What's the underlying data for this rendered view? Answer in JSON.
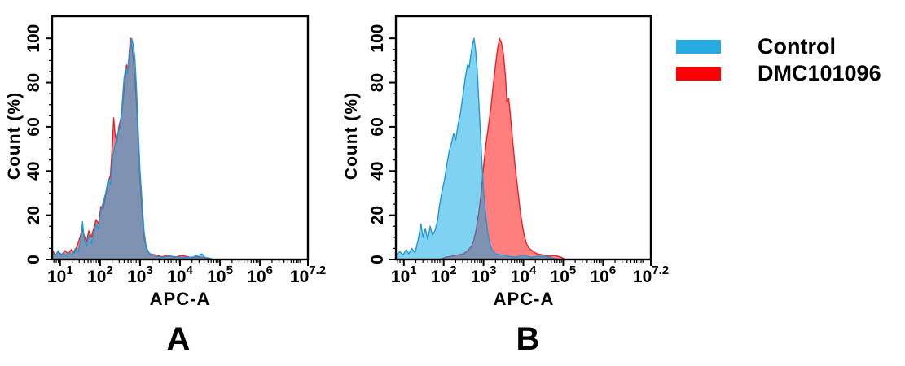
{
  "figure": {
    "background": "#FFFFFF",
    "text_color": "#000000"
  },
  "legend": {
    "position": "top-right",
    "items": [
      {
        "label": "Control",
        "color": "#29ABE2"
      },
      {
        "label": "DMC101096",
        "color": "#FF0000"
      }
    ]
  },
  "chart_data": [
    {
      "type": "area",
      "panel_label": "A",
      "xlabel": "APC-A",
      "ylabel": "Count (%)",
      "x_scale": "log10",
      "x_log_range": [
        0.8,
        7.2
      ],
      "x_ticks": [
        {
          "log": 1,
          "base": "10",
          "exp": "1"
        },
        {
          "log": 2,
          "base": "10",
          "exp": "2"
        },
        {
          "log": 3,
          "base": "10",
          "exp": "3"
        },
        {
          "log": 4,
          "base": "10",
          "exp": "4"
        },
        {
          "log": 5,
          "base": "10",
          "exp": "5"
        },
        {
          "log": 6,
          "base": "10",
          "exp": "6"
        },
        {
          "log": 7.2,
          "base": "10",
          "exp": "7.2"
        }
      ],
      "ylim": [
        0,
        100
      ],
      "y_display_max": 110,
      "y_ticks": [
        0,
        20,
        40,
        60,
        80,
        100
      ],
      "grid": false,
      "series": [
        {
          "name": "Control",
          "fill": "#00A5E5",
          "fill_opacity": 0.5,
          "stroke": "#2098D6",
          "points_log10x_pct": [
            [
              0.8,
              3
            ],
            [
              0.88,
              1.5
            ],
            [
              0.95,
              4
            ],
            [
              1.0,
              2
            ],
            [
              1.08,
              3
            ],
            [
              1.15,
              1.5
            ],
            [
              1.22,
              3
            ],
            [
              1.3,
              2
            ],
            [
              1.38,
              5
            ],
            [
              1.45,
              3
            ],
            [
              1.52,
              9
            ],
            [
              1.56,
              17
            ],
            [
              1.6,
              9
            ],
            [
              1.66,
              6
            ],
            [
              1.72,
              11
            ],
            [
              1.78,
              7
            ],
            [
              1.84,
              12
            ],
            [
              1.9,
              16
            ],
            [
              1.96,
              14
            ],
            [
              2.02,
              22
            ],
            [
              2.08,
              26
            ],
            [
              2.14,
              30
            ],
            [
              2.2,
              36
            ],
            [
              2.26,
              34
            ],
            [
              2.32,
              47
            ],
            [
              2.38,
              52
            ],
            [
              2.44,
              57
            ],
            [
              2.5,
              60
            ],
            [
              2.55,
              70
            ],
            [
              2.6,
              82
            ],
            [
              2.64,
              86
            ],
            [
              2.68,
              84
            ],
            [
              2.72,
              91
            ],
            [
              2.76,
              96
            ],
            [
              2.79,
              100
            ],
            [
              2.83,
              97
            ],
            [
              2.87,
              91
            ],
            [
              2.91,
              78
            ],
            [
              2.95,
              60
            ],
            [
              3.0,
              40
            ],
            [
              3.05,
              26
            ],
            [
              3.1,
              13
            ],
            [
              3.15,
              6
            ],
            [
              3.22,
              3
            ],
            [
              3.35,
              1.5
            ],
            [
              3.55,
              1
            ],
            [
              3.75,
              1.5
            ],
            [
              4.0,
              1
            ],
            [
              4.3,
              1
            ],
            [
              4.55,
              2.5
            ],
            [
              4.62,
              1
            ],
            [
              4.75,
              0.5
            ],
            [
              4.85,
              0
            ]
          ]
        },
        {
          "name": "DMC101096",
          "fill": "#FF0000",
          "fill_opacity": 0.5,
          "stroke": "#ED2024",
          "points_log10x_pct": [
            [
              0.8,
              4.5
            ],
            [
              0.88,
              2
            ],
            [
              0.96,
              3.5
            ],
            [
              1.04,
              2
            ],
            [
              1.12,
              4
            ],
            [
              1.2,
              2.5
            ],
            [
              1.28,
              4.5
            ],
            [
              1.36,
              3
            ],
            [
              1.44,
              7
            ],
            [
              1.5,
              10
            ],
            [
              1.55,
              14
            ],
            [
              1.6,
              11
            ],
            [
              1.66,
              8
            ],
            [
              1.72,
              13
            ],
            [
              1.78,
              10
            ],
            [
              1.84,
              14
            ],
            [
              1.9,
              18
            ],
            [
              1.96,
              16
            ],
            [
              2.02,
              24
            ],
            [
              2.08,
              23
            ],
            [
              2.14,
              29
            ],
            [
              2.2,
              35
            ],
            [
              2.26,
              38
            ],
            [
              2.3,
              50
            ],
            [
              2.34,
              64
            ],
            [
              2.38,
              56
            ],
            [
              2.42,
              53
            ],
            [
              2.47,
              60
            ],
            [
              2.52,
              64
            ],
            [
              2.57,
              71
            ],
            [
              2.62,
              80
            ],
            [
              2.66,
              88
            ],
            [
              2.7,
              86
            ],
            [
              2.73,
              94
            ],
            [
              2.76,
              100
            ],
            [
              2.8,
              96
            ],
            [
              2.84,
              89
            ],
            [
              2.88,
              80
            ],
            [
              2.92,
              68
            ],
            [
              2.96,
              52
            ],
            [
              3.0,
              36
            ],
            [
              3.05,
              21
            ],
            [
              3.1,
              10
            ],
            [
              3.16,
              5
            ],
            [
              3.24,
              2.5
            ],
            [
              3.4,
              2
            ],
            [
              3.55,
              1.2
            ],
            [
              3.7,
              2
            ],
            [
              3.85,
              1
            ],
            [
              4.05,
              1.8
            ],
            [
              4.25,
              1
            ],
            [
              4.45,
              1.2
            ],
            [
              4.65,
              0.8
            ],
            [
              4.8,
              0
            ]
          ]
        }
      ]
    },
    {
      "type": "area",
      "panel_label": "B",
      "xlabel": "APC-A",
      "ylabel": "Count (%)",
      "x_scale": "log10",
      "x_log_range": [
        0.8,
        7.2
      ],
      "x_ticks": [
        {
          "log": 1,
          "base": "10",
          "exp": "1"
        },
        {
          "log": 2,
          "base": "10",
          "exp": "2"
        },
        {
          "log": 3,
          "base": "10",
          "exp": "3"
        },
        {
          "log": 4,
          "base": "10",
          "exp": "4"
        },
        {
          "log": 5,
          "base": "10",
          "exp": "5"
        },
        {
          "log": 6,
          "base": "10",
          "exp": "6"
        },
        {
          "log": 7.2,
          "base": "10",
          "exp": "7.2"
        }
      ],
      "ylim": [
        0,
        100
      ],
      "y_display_max": 110,
      "y_ticks": [
        0,
        20,
        40,
        60,
        80,
        100
      ],
      "grid": false,
      "series": [
        {
          "name": "Control",
          "fill": "#00A5E5",
          "fill_opacity": 0.5,
          "stroke": "#2098D6",
          "points_log10x_pct": [
            [
              0.8,
              2
            ],
            [
              0.9,
              3.5
            ],
            [
              0.98,
              2
            ],
            [
              1.06,
              4.5
            ],
            [
              1.12,
              2.5
            ],
            [
              1.2,
              5
            ],
            [
              1.28,
              3
            ],
            [
              1.36,
              9
            ],
            [
              1.43,
              16
            ],
            [
              1.48,
              10
            ],
            [
              1.54,
              14
            ],
            [
              1.6,
              9
            ],
            [
              1.66,
              15
            ],
            [
              1.72,
              11
            ],
            [
              1.78,
              13
            ],
            [
              1.84,
              17
            ],
            [
              1.9,
              25
            ],
            [
              1.96,
              31
            ],
            [
              2.02,
              36
            ],
            [
              2.08,
              43
            ],
            [
              2.14,
              49
            ],
            [
              2.2,
              53
            ],
            [
              2.25,
              57
            ],
            [
              2.3,
              54
            ],
            [
              2.36,
              61
            ],
            [
              2.42,
              66
            ],
            [
              2.48,
              74
            ],
            [
              2.54,
              82
            ],
            [
              2.6,
              88
            ],
            [
              2.64,
              87
            ],
            [
              2.68,
              92
            ],
            [
              2.72,
              97
            ],
            [
              2.76,
              100
            ],
            [
              2.8,
              95
            ],
            [
              2.84,
              86
            ],
            [
              2.88,
              72
            ],
            [
              2.92,
              58
            ],
            [
              2.96,
              44
            ],
            [
              3.0,
              31
            ],
            [
              3.05,
              21
            ],
            [
              3.1,
              13
            ],
            [
              3.16,
              7
            ],
            [
              3.22,
              4
            ],
            [
              3.3,
              2.5
            ],
            [
              3.45,
              2
            ],
            [
              3.6,
              1.5
            ],
            [
              3.8,
              1
            ],
            [
              4.0,
              1.8
            ],
            [
              4.2,
              1
            ],
            [
              4.4,
              1.5
            ],
            [
              4.6,
              1.2
            ],
            [
              4.75,
              0.5
            ],
            [
              4.85,
              0
            ]
          ]
        },
        {
          "name": "DMC101096",
          "fill": "#FF0000",
          "fill_opacity": 0.5,
          "stroke": "#ED2024",
          "points_log10x_pct": [
            [
              1.9,
              0
            ],
            [
              2.05,
              1
            ],
            [
              2.2,
              1.5
            ],
            [
              2.35,
              2
            ],
            [
              2.5,
              2.5
            ],
            [
              2.6,
              4
            ],
            [
              2.7,
              6
            ],
            [
              2.76,
              9
            ],
            [
              2.82,
              14
            ],
            [
              2.88,
              21
            ],
            [
              2.94,
              30
            ],
            [
              3.0,
              42
            ],
            [
              3.06,
              52
            ],
            [
              3.12,
              60
            ],
            [
              3.18,
              68
            ],
            [
              3.24,
              78
            ],
            [
              3.3,
              88
            ],
            [
              3.35,
              95
            ],
            [
              3.4,
              100
            ],
            [
              3.45,
              98
            ],
            [
              3.5,
              93
            ],
            [
              3.55,
              83
            ],
            [
              3.59,
              71
            ],
            [
              3.63,
              73
            ],
            [
              3.67,
              66
            ],
            [
              3.72,
              56
            ],
            [
              3.77,
              46
            ],
            [
              3.82,
              38
            ],
            [
              3.87,
              30
            ],
            [
              3.92,
              22
            ],
            [
              3.97,
              16
            ],
            [
              4.02,
              11
            ],
            [
              4.08,
              7
            ],
            [
              4.15,
              5
            ],
            [
              4.25,
              3.5
            ],
            [
              4.35,
              2.5
            ],
            [
              4.5,
              2
            ],
            [
              4.65,
              1.5
            ],
            [
              4.8,
              1.8
            ],
            [
              4.95,
              1
            ],
            [
              5.05,
              0
            ]
          ]
        }
      ]
    }
  ]
}
